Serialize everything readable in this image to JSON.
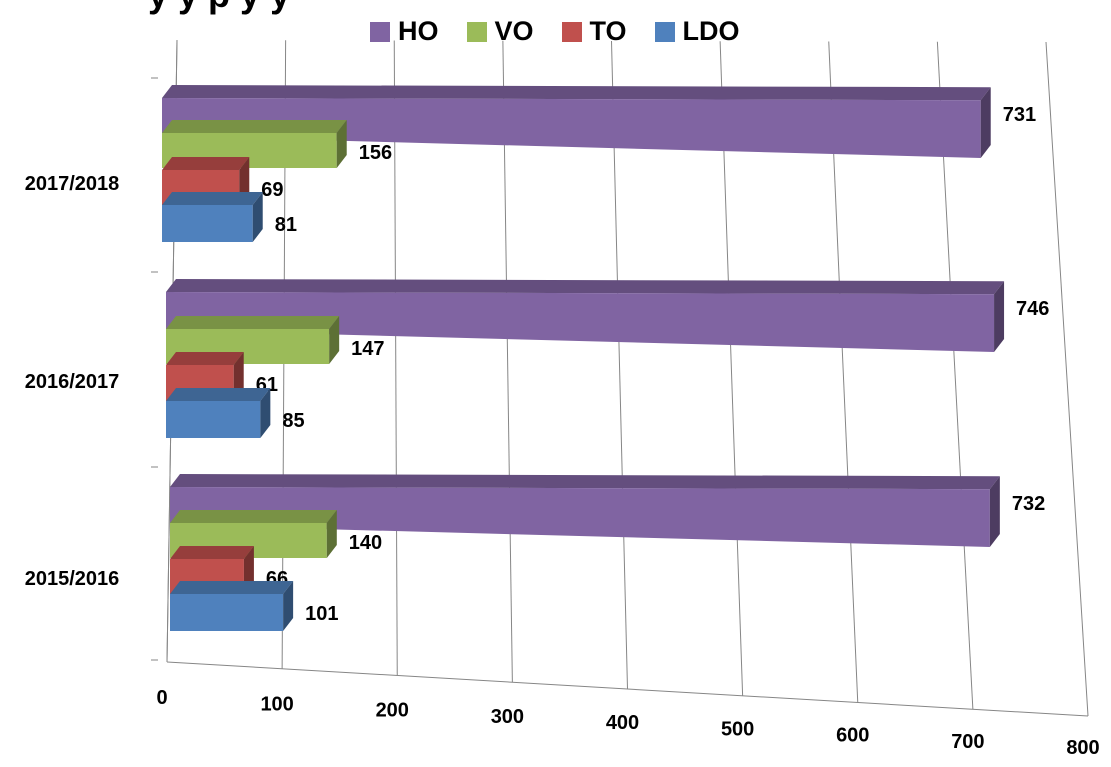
{
  "title_fragment": "y y p             y             y",
  "chart_data": {
    "type": "bar",
    "orientation": "horizontal",
    "three_d": true,
    "categories": [
      "2017/2018",
      "2016/2017",
      "2015/2016"
    ],
    "series": [
      {
        "name": "HO",
        "color": "#8064A2",
        "values": [
          731,
          746,
          732
        ]
      },
      {
        "name": "VO",
        "color": "#9BBB59",
        "values": [
          156,
          147,
          140
        ]
      },
      {
        "name": "TO",
        "color": "#C0504D",
        "values": [
          69,
          61,
          66
        ]
      },
      {
        "name": "LDO",
        "color": "#4F81BD",
        "values": [
          81,
          85,
          101
        ]
      }
    ],
    "x_ticks": [
      0,
      100,
      200,
      300,
      400,
      500,
      600,
      700,
      800
    ],
    "xlim": [
      0,
      800
    ],
    "legend_position": "top",
    "grid": true
  }
}
